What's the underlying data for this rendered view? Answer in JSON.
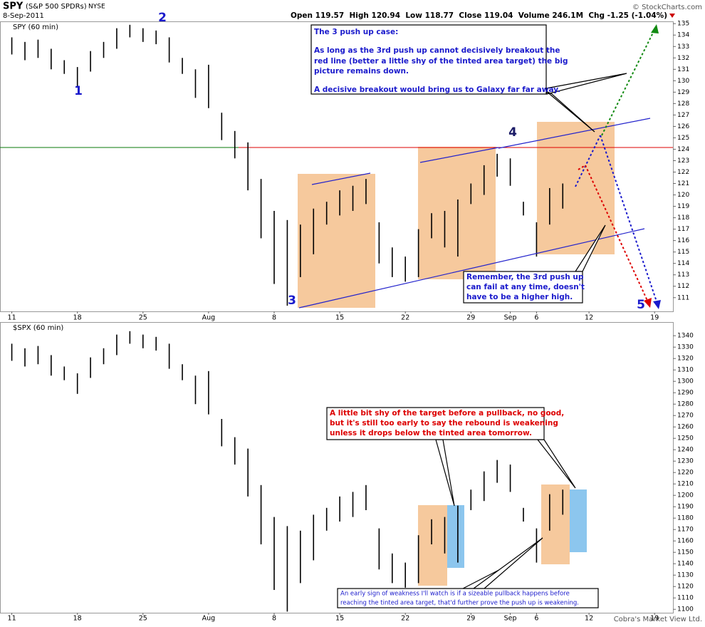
{
  "header": {
    "symbol": "SPY",
    "name": "(S&P 500 SPDRs)",
    "exchange": "NYSE",
    "date": "8-Sep-2011",
    "source": "© StockCharts.com",
    "stats": "Open 119.57  High 120.94  Low 118.77  Close 119.04  Volume 246.1M  Chg -1.25 (-1.04%)"
  },
  "chart_data": [
    {
      "type": "ohlc",
      "title": "SPY (60 min)",
      "color": "#000000",
      "high": [
        133.8,
        133.4,
        133.6,
        132.8,
        131.8,
        131.2,
        132.6,
        133.4,
        134.6,
        134.9,
        134.6,
        134.4,
        133.8,
        132.0,
        131.0,
        131.4,
        127.2,
        125.6,
        124.6,
        121.4,
        118.6,
        117.8,
        117.4,
        118.8,
        119.4,
        120.4,
        120.8,
        121.4,
        117.6,
        115.4,
        114.6,
        117.0,
        118.4,
        118.6,
        119.6,
        121.0,
        122.6,
        123.6,
        123.2,
        119.4,
        117.6,
        120.6,
        121.0
      ],
      "low": [
        132.3,
        131.8,
        132.0,
        131.0,
        130.6,
        129.4,
        130.8,
        132.0,
        132.8,
        133.8,
        133.4,
        133.2,
        131.6,
        130.6,
        128.5,
        127.6,
        124.8,
        123.2,
        120.4,
        116.2,
        112.2,
        110.3,
        112.8,
        114.8,
        117.4,
        118.2,
        118.6,
        119.2,
        114.0,
        112.8,
        112.4,
        112.8,
        116.2,
        115.4,
        114.6,
        119.2,
        120.0,
        121.6,
        120.8,
        118.2,
        114.6,
        117.4,
        118.8
      ],
      "ylim": [
        109.8,
        135.2
      ],
      "yticks": [
        111,
        112,
        113,
        114,
        115,
        116,
        117,
        118,
        119,
        120,
        121,
        122,
        123,
        124,
        125,
        126,
        127,
        128,
        129,
        130,
        131,
        132,
        133,
        134,
        135
      ],
      "xlim": [
        -0.9,
        50.4
      ],
      "xticks": [
        {
          "value": 0,
          "label": "11"
        },
        {
          "value": 5,
          "label": "18"
        },
        {
          "value": 10,
          "label": "25"
        },
        {
          "value": 15,
          "label": "Aug"
        },
        {
          "value": 20,
          "label": "8"
        },
        {
          "value": 25,
          "label": "15"
        },
        {
          "value": 30,
          "label": "22"
        },
        {
          "value": 35,
          "label": "29"
        },
        {
          "value": 38,
          "label": "Sep"
        },
        {
          "value": 40,
          "label": "6"
        },
        {
          "value": 44,
          "label": "12"
        },
        {
          "value": 49,
          "label": "19"
        }
      ]
    },
    {
      "type": "ohlc",
      "title": "$SPX (60 min)",
      "color": "#000000",
      "high": [
        1333,
        1329,
        1331,
        1323,
        1313,
        1307,
        1321,
        1329,
        1341,
        1344,
        1341,
        1339,
        1333,
        1315,
        1305,
        1309,
        1267,
        1251,
        1241,
        1209,
        1181,
        1173,
        1169,
        1183,
        1189,
        1199,
        1203,
        1209,
        1171,
        1149,
        1141,
        1165,
        1179,
        1181,
        1191,
        1205,
        1221,
        1231,
        1227,
        1189,
        1171,
        1201,
        1205
      ],
      "low": [
        1318,
        1313,
        1315,
        1305,
        1301,
        1289,
        1303,
        1315,
        1323,
        1333,
        1329,
        1327,
        1311,
        1301,
        1280,
        1271,
        1243,
        1227,
        1199,
        1157,
        1117,
        1098,
        1123,
        1143,
        1169,
        1177,
        1181,
        1187,
        1135,
        1123,
        1119,
        1123,
        1157,
        1149,
        1141,
        1187,
        1195,
        1211,
        1203,
        1177,
        1141,
        1169,
        1183
      ],
      "ylim": [
        1097,
        1352
      ],
      "yticks": [
        1100,
        1110,
        1120,
        1130,
        1140,
        1150,
        1160,
        1170,
        1180,
        1190,
        1200,
        1210,
        1220,
        1230,
        1240,
        1250,
        1260,
        1270,
        1280,
        1290,
        1300,
        1310,
        1320,
        1330,
        1340
      ],
      "xlim": [
        -0.9,
        50.4
      ],
      "xticks": [
        {
          "value": 0,
          "label": "11"
        },
        {
          "value": 5,
          "label": "18"
        },
        {
          "value": 10,
          "label": "25"
        },
        {
          "value": 15,
          "label": "Aug"
        },
        {
          "value": 20,
          "label": "8"
        },
        {
          "value": 25,
          "label": "15"
        },
        {
          "value": 30,
          "label": "22"
        },
        {
          "value": 35,
          "label": "29"
        },
        {
          "value": 38,
          "label": "Sep"
        },
        {
          "value": 40,
          "label": "6"
        },
        {
          "value": 44,
          "label": "12"
        },
        {
          "value": 49,
          "label": "19"
        }
      ]
    }
  ],
  "waves": [
    "1",
    "2",
    "3",
    "4",
    "5"
  ],
  "annotations": {
    "push_case": [
      "The 3 push up case:",
      "As long as the 3rd push up cannot decisively breakout the",
      "red line (better a little shy of the tinted area target) the big",
      "picture remains down.",
      "A decisive breakout would bring us to Galaxy far far away."
    ],
    "remember": [
      "Remember, the 3rd push up",
      "can fail at any time, doesn't",
      "have to be a higher high."
    ],
    "shy": [
      "A little bit shy of the target before a pullback, no good,",
      "but it's still too early to say the rebound is weakening",
      "unless it drops below the tinted area tomorrow."
    ],
    "weakness": [
      "An early sign of weakness I'll watch is if a sizeable pullback happens before",
      "reaching the tinted area target, that'd further prove the push up is weakening."
    ]
  },
  "footer": "Cobra's Market View Ltd."
}
